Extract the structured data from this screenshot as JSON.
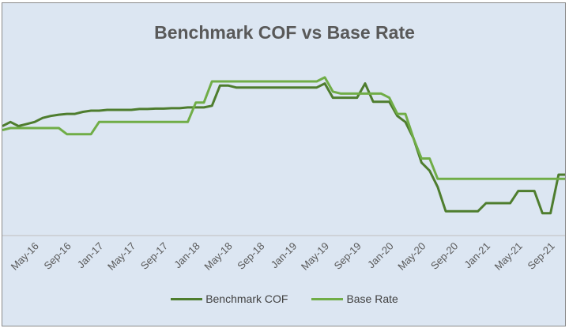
{
  "chart_data": {
    "type": "line",
    "title": "Benchmark COF vs Base Rate",
    "xlabel": "",
    "ylabel": "",
    "x": [
      "Jan-16",
      "Feb-16",
      "Mar-16",
      "Apr-16",
      "May-16",
      "Jun-16",
      "Jul-16",
      "Aug-16",
      "Sep-16",
      "Oct-16",
      "Nov-16",
      "Dec-16",
      "Jan-17",
      "Feb-17",
      "Mar-17",
      "Apr-17",
      "May-17",
      "Jun-17",
      "Jul-17",
      "Aug-17",
      "Sep-17",
      "Oct-17",
      "Nov-17",
      "Dec-17",
      "Jan-18",
      "Feb-18",
      "Mar-18",
      "Apr-18",
      "May-18",
      "Jun-18",
      "Jul-18",
      "Aug-18",
      "Sep-18",
      "Oct-18",
      "Nov-18",
      "Dec-18",
      "Jan-19",
      "Feb-19",
      "Mar-19",
      "Apr-19",
      "May-19",
      "Jun-19",
      "Jul-19",
      "Aug-19",
      "Sep-19",
      "Oct-19",
      "Nov-19",
      "Dec-19",
      "Jan-20",
      "Feb-20",
      "Mar-20",
      "Apr-20",
      "May-20",
      "Jun-20",
      "Jul-20",
      "Aug-20",
      "Sep-20",
      "Oct-20",
      "Nov-20",
      "Dec-20",
      "Jan-21",
      "Feb-21",
      "Mar-21",
      "Apr-21",
      "May-21",
      "Jun-21",
      "Jul-21",
      "Aug-21",
      "Sep-21",
      "Oct-21",
      "Nov-21"
    ],
    "tick_labels": [
      "May-16",
      "Sep-16",
      "Jan-17",
      "May-17",
      "Sep-17",
      "Jan-18",
      "May-18",
      "Sep-18",
      "Jan-19",
      "May-19",
      "Sep-19",
      "Jan-20",
      "May-20",
      "Sep-20",
      "Jan-21",
      "May-21",
      "Sep-21"
    ],
    "series": [
      {
        "name": "Benchmark COF",
        "color": "#4e7d2e",
        "values": [
          0.3,
          0.4,
          0.3,
          0.35,
          0.4,
          0.5,
          0.55,
          0.58,
          0.6,
          0.6,
          0.65,
          0.68,
          0.68,
          0.7,
          0.7,
          0.7,
          0.7,
          0.72,
          0.72,
          0.73,
          0.73,
          0.74,
          0.74,
          0.76,
          0.76,
          0.76,
          0.8,
          1.3,
          1.3,
          1.25,
          1.25,
          1.25,
          1.25,
          1.25,
          1.25,
          1.25,
          1.25,
          1.25,
          1.25,
          1.25,
          1.35,
          1.0,
          1.0,
          1.0,
          1.0,
          1.35,
          0.9,
          0.9,
          0.9,
          0.55,
          0.4,
          0.0,
          -0.6,
          -0.8,
          -1.2,
          -1.8,
          -1.8,
          -1.8,
          -1.8,
          -1.8,
          -1.6,
          -1.6,
          -1.6,
          -1.6,
          -1.3,
          -1.3,
          -1.3,
          -1.85,
          -1.85,
          -0.9,
          -0.9
        ]
      },
      {
        "name": "Base Rate",
        "color": "#70ad47",
        "values": [
          0.2,
          0.25,
          0.25,
          0.25,
          0.25,
          0.25,
          0.25,
          0.25,
          0.1,
          0.1,
          0.1,
          0.1,
          0.4,
          0.4,
          0.4,
          0.4,
          0.4,
          0.4,
          0.4,
          0.4,
          0.4,
          0.4,
          0.4,
          0.4,
          0.88,
          0.88,
          1.4,
          1.4,
          1.4,
          1.4,
          1.4,
          1.4,
          1.4,
          1.4,
          1.4,
          1.4,
          1.4,
          1.4,
          1.4,
          1.4,
          1.5,
          1.15,
          1.1,
          1.1,
          1.1,
          1.1,
          1.1,
          1.1,
          1.0,
          0.6,
          0.6,
          0.0,
          -0.5,
          -0.5,
          -1.0,
          -1.0,
          -1.0,
          -1.0,
          -1.0,
          -1.0,
          -1.0,
          -1.0,
          -1.0,
          -1.0,
          -1.0,
          -1.0,
          -1.0,
          -1.0,
          -1.0,
          -1.0,
          -1.0
        ]
      }
    ],
    "ylim": [
      -2.4,
      2.2
    ],
    "grid": false,
    "legend_position": "bottom"
  }
}
